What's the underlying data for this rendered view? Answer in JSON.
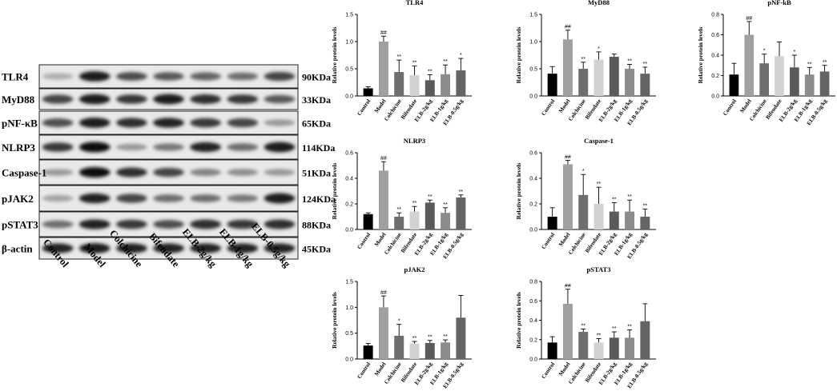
{
  "blot": {
    "proteins": [
      {
        "name": "TLR4",
        "size": "90KDa",
        "intensity": [
          0.25,
          0.95,
          0.7,
          0.65,
          0.6,
          0.55,
          0.75
        ]
      },
      {
        "name": "MyD88",
        "size": "33KDa",
        "intensity": [
          0.75,
          0.95,
          0.8,
          0.95,
          0.85,
          0.8,
          0.65
        ]
      },
      {
        "name": "pNF-κB",
        "size": "65KDa",
        "intensity": [
          0.7,
          0.95,
          0.85,
          0.9,
          0.8,
          0.75,
          0.35
        ]
      },
      {
        "name": "NLRP3",
        "size": "114KDa",
        "intensity": [
          0.8,
          1.0,
          0.35,
          0.5,
          0.9,
          0.55,
          0.95
        ]
      },
      {
        "name": "Caspase-1",
        "size": "51KDa",
        "intensity": [
          0.35,
          1.0,
          0.85,
          0.75,
          0.45,
          0.4,
          0.35
        ]
      },
      {
        "name": "pJAK2",
        "size": "124KDa",
        "intensity": [
          0.3,
          0.9,
          0.75,
          0.55,
          0.55,
          0.5,
          0.95
        ]
      },
      {
        "name": "pSTAT3",
        "size": "88KDa",
        "intensity": [
          0.55,
          0.9,
          0.8,
          0.7,
          0.85,
          0.8,
          0.85
        ]
      },
      {
        "name": "β-actin",
        "size": "45KDa",
        "intensity": [
          0.9,
          0.95,
          0.9,
          0.9,
          0.9,
          0.9,
          0.9
        ]
      }
    ],
    "lanes": [
      "Control",
      "Model",
      "Colchicine",
      "Bifendate",
      "ELB-2g/kg",
      "ELB-1g/kg",
      "ELB-0.5g/kg"
    ]
  },
  "chart_data": [
    {
      "type": "bar",
      "title": "TLR4",
      "ylabel": "Relative protein levels",
      "categories": [
        "Control",
        "Model",
        "Colchicine",
        "Bifendate",
        "ELB-2g/kg",
        "ELB-1g/kg",
        "ELB-0.5g/kg"
      ],
      "values": [
        0.14,
        1.0,
        0.44,
        0.38,
        0.29,
        0.4,
        0.47
      ],
      "errors": [
        0.03,
        0.1,
        0.22,
        0.17,
        0.1,
        0.17,
        0.22
      ],
      "significance": [
        "",
        "##",
        "**",
        "**",
        "**",
        "**",
        "*"
      ],
      "ylim": [
        0,
        1.5
      ],
      "yticks": [
        "0.0",
        "0.5",
        "1.0",
        "1.5"
      ]
    },
    {
      "type": "bar",
      "title": "MyD88",
      "ylabel": "Relative protein levels",
      "categories": [
        "Control",
        "Model",
        "Colchicine",
        "Bifendate",
        "ELB-2g/kg",
        "ELB-1g/kg",
        "ELB-0.5g/kg"
      ],
      "values": [
        0.41,
        1.04,
        0.5,
        0.67,
        0.72,
        0.5,
        0.41
      ],
      "errors": [
        0.13,
        0.17,
        0.12,
        0.14,
        0.05,
        0.08,
        0.12
      ],
      "significance": [
        "",
        "##",
        "**",
        "*",
        "",
        "**",
        "**"
      ],
      "ylim": [
        0,
        1.5
      ],
      "yticks": [
        "0.0",
        "0.5",
        "1.0",
        "1.5"
      ]
    },
    {
      "type": "bar",
      "title": "pNF-kB",
      "ylabel": "Relative protein levels",
      "categories": [
        "Control",
        "Model",
        "Colchicine",
        "Bifendate",
        "ELB-2g/kg",
        "ELB-1g/kg",
        "ELB-0.5g/kg"
      ],
      "values": [
        0.21,
        0.6,
        0.32,
        0.39,
        0.28,
        0.21,
        0.24
      ],
      "errors": [
        0.11,
        0.13,
        0.09,
        0.14,
        0.12,
        0.07,
        0.06
      ],
      "significance": [
        "",
        "##",
        "*",
        "",
        "*",
        "**",
        "**"
      ],
      "ylim": [
        0,
        0.8
      ],
      "yticks": [
        "0.0",
        "0.2",
        "0.4",
        "0.6",
        "0.8"
      ]
    },
    {
      "type": "bar",
      "title": "NLRP3",
      "ylabel": "Relative protein levels",
      "categories": [
        "Control",
        "Model",
        "Colchicine",
        "Bifendate",
        "ELB-2g/kg",
        "ELB-1g/kg",
        "ELB-0.5g/kg"
      ],
      "values": [
        0.12,
        0.46,
        0.1,
        0.14,
        0.21,
        0.13,
        0.25
      ],
      "errors": [
        0.01,
        0.07,
        0.03,
        0.04,
        0.02,
        0.04,
        0.02
      ],
      "significance": [
        "",
        "##",
        "**",
        "**",
        "**",
        "**",
        "**"
      ],
      "ylim": [
        0,
        0.6
      ],
      "yticks": [
        "0.0",
        "0.2",
        "0.4",
        "0.6"
      ]
    },
    {
      "type": "bar",
      "title": "Caspase-1",
      "ylabel": "Relative protein levels",
      "categories": [
        "Control",
        "Model",
        "Colchicine",
        "Bifendate",
        "ELB-2g/kg",
        "ELB-1g/kg",
        "ELB-0.5g/kg"
      ],
      "values": [
        0.1,
        0.51,
        0.27,
        0.2,
        0.14,
        0.14,
        0.1
      ],
      "errors": [
        0.07,
        0.03,
        0.16,
        0.13,
        0.07,
        0.09,
        0.06
      ],
      "significance": [
        "",
        "##",
        "*",
        "**",
        "**",
        "**",
        "**"
      ],
      "ylim": [
        0,
        0.6
      ],
      "yticks": [
        "0.0",
        "0.2",
        "0.4",
        "0.6"
      ]
    },
    {
      "type": "bar",
      "title": "pJAK2",
      "ylabel": "Relative protein levels",
      "categories": [
        "Control",
        "Model",
        "Colchicine",
        "Bifendate",
        "ELB-2g/kg",
        "ELB-1g/kg",
        "ELB-0.5g/kg"
      ],
      "values": [
        0.26,
        1.0,
        0.45,
        0.3,
        0.31,
        0.32,
        0.8
      ],
      "errors": [
        0.04,
        0.22,
        0.22,
        0.04,
        0.05,
        0.05,
        0.43
      ],
      "significance": [
        "",
        "##",
        "*",
        "**",
        "**",
        "**",
        ""
      ],
      "ylim": [
        0,
        1.5
      ],
      "yticks": [
        "0.0",
        "0.5",
        "1.0",
        "1.5"
      ]
    },
    {
      "type": "bar",
      "title": "pSTAT3",
      "ylabel": "Relative protein levels",
      "categories": [
        "Control",
        "Model",
        "Colchicine",
        "Bifendate",
        "ELB-2g/kg",
        "ELB-1g/kg",
        "ELB-0.5g/kg"
      ],
      "values": [
        0.17,
        0.57,
        0.28,
        0.17,
        0.22,
        0.22,
        0.39
      ],
      "errors": [
        0.06,
        0.15,
        0.03,
        0.04,
        0.06,
        0.08,
        0.18
      ],
      "significance": [
        "",
        "##",
        "**",
        "**",
        "**",
        "**",
        ""
      ],
      "ylim": [
        0,
        0.8
      ],
      "yticks": [
        "0.0",
        "0.2",
        "0.4",
        "0.6",
        "0.8"
      ]
    }
  ],
  "colors": [
    "#000000",
    "#a0a0a0",
    "#6e6e6e",
    "#d2d2d2",
    "#5a5a5a",
    "#8c8c8c",
    "#646464"
  ]
}
